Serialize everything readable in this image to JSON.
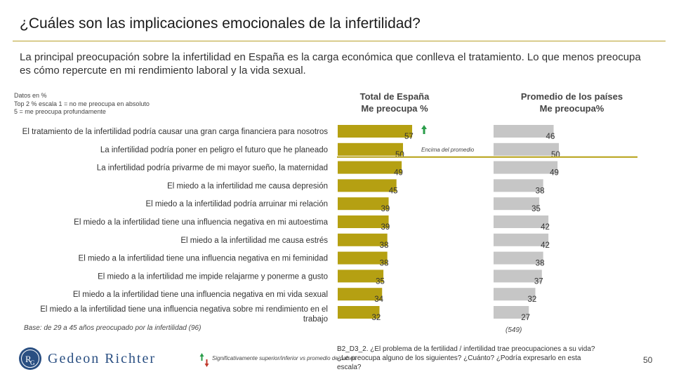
{
  "header": {
    "title": "¿Cuáles son las implicaciones emocionales de la infertilidad?",
    "subtitle": "La principal preocupación sobre la infertilidad en España es la carga económica que conlleva el tratamiento. Lo que menos preocupa es cómo repercute en mi rendimiento laboral y la vida sexual."
  },
  "notes": {
    "line1": "Datos en %",
    "line2": "Top 2  % escala 1 = no me preocupa en absoluto",
    "line3": "5 = me preocupa profundamente"
  },
  "chart_data": {
    "type": "bar",
    "orientation": "horizontal",
    "categories": [
      "El tratamiento de la infertilidad podría causar una gran carga financiera para nosotros",
      "La infertilidad podría poner en peligro el futuro que he planeado",
      "La infertilidad podría privarme de mi mayor sueño, la maternidad",
      "El miedo a la infertilidad me causa depresión",
      "El miedo a la infertilidad podría arruinar mi relación",
      "El miedo a la infertilidad tiene una influencia negativa en mi autoestima",
      "El miedo a la infertilidad me causa estrés",
      "El miedo a la infertilidad tiene una influencia negativa en mi feminidad",
      "El miedo a la infertilidad me impide relajarme y  ponerme a gusto",
      "El miedo a la infertilidad tiene una influencia negativa en mi vida sexual",
      "El miedo a la infertilidad tiene una influencia negativa sobre mi rendimiento en el trabajo"
    ],
    "series": [
      {
        "name": "Total de España Me preocupa %",
        "header_line1": "Total de España",
        "header_line2": "Me preocupa %",
        "color": "#b5a012",
        "values": [
          57,
          50,
          49,
          45,
          39,
          39,
          38,
          38,
          35,
          34,
          32
        ]
      },
      {
        "name": "Promedio de los países Me preocupa%",
        "header_line1": "Promedio de los países",
        "header_line2": "Me preocupa%",
        "color": "#c6c6c6",
        "values": [
          46,
          50,
          49,
          38,
          35,
          42,
          42,
          38,
          37,
          32,
          27
        ]
      }
    ],
    "significance": [
      {
        "category_index": 0,
        "direction": "up",
        "color": "#2a9d4a"
      }
    ],
    "annotation": "Encima del promedio",
    "annotation_line_color": "#b5a012",
    "xlim": [
      0,
      100
    ]
  },
  "footer": {
    "base": "Base: de 29 a 45 años preocupado por la infertilidad (96)",
    "avg_base": "(549)",
    "brand": "Gedeon Richter",
    "legend_text": "Significativamente superior/inferior vs promedio de países",
    "question": "B2_D3_2. ¿El problema de la fertilidad / infertilidad trae preocupaciones a su vida? ¿Le preocupa alguno de los siguientes? ¿Cuánto? ¿Podría expresarlo en esta escala?",
    "page_number": "50",
    "brand_color": "#2a4f82",
    "up_color": "#2a9d4a",
    "down_color": "#c0392b"
  }
}
